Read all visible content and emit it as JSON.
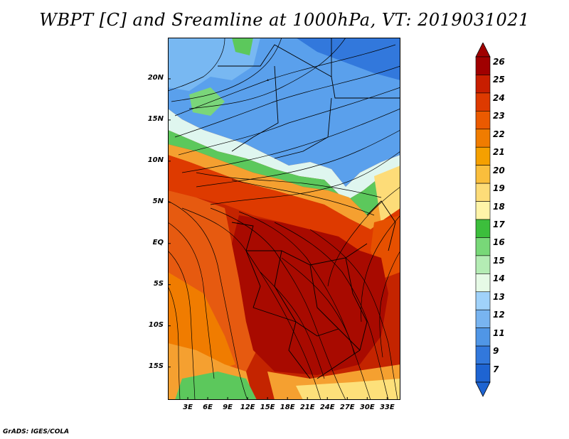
{
  "title": "WBPT [C] and Sreamline at 1000hPa, VT: 2019031021",
  "footer": "GrADS: IGES/COLA",
  "map": {
    "lat_range": [
      -19,
      25
    ],
    "lon_range": [
      0,
      35
    ],
    "lat_ticks": [
      {
        "value": 20,
        "label": "20N"
      },
      {
        "value": 15,
        "label": "15N"
      },
      {
        "value": 10,
        "label": "10N"
      },
      {
        "value": 5,
        "label": "5N"
      },
      {
        "value": 0,
        "label": "EQ"
      },
      {
        "value": -5,
        "label": "5S"
      },
      {
        "value": -10,
        "label": "10S"
      },
      {
        "value": -15,
        "label": "15S"
      }
    ],
    "lon_ticks": [
      {
        "value": 3,
        "label": "3E"
      },
      {
        "value": 6,
        "label": "6E"
      },
      {
        "value": 9,
        "label": "9E"
      },
      {
        "value": 12,
        "label": "12E"
      },
      {
        "value": 15,
        "label": "15E"
      },
      {
        "value": 18,
        "label": "18E"
      },
      {
        "value": 21,
        "label": "21E"
      },
      {
        "value": 24,
        "label": "24E"
      },
      {
        "value": 27,
        "label": "27E"
      },
      {
        "value": 30,
        "label": "30E"
      },
      {
        "value": 33,
        "label": "33E"
      }
    ]
  },
  "colorbar": {
    "levels": [
      "26",
      "25",
      "24",
      "23",
      "22",
      "21",
      "20",
      "19",
      "18",
      "17",
      "16",
      "15",
      "14",
      "13",
      "12",
      "11",
      "9",
      "7"
    ],
    "colors": [
      "#a00000",
      "#c81e00",
      "#de3a00",
      "#eb5a00",
      "#f07c00",
      "#f5a000",
      "#fabe3c",
      "#fddc78",
      "#fff4a8",
      "#3cbe3c",
      "#78d878",
      "#b4ecb4",
      "#e6fae6",
      "#a0d2fa",
      "#78b4f0",
      "#5096e6",
      "#3278dc",
      "#1e64d2"
    ]
  },
  "colors": {
    "hot": "#b01a00",
    "warm": "#e65000",
    "mild": "#f5a030",
    "pale": "#fde07a",
    "green": "#56c856",
    "cool": "#8cc8f0",
    "cold": "#4a8ee8"
  }
}
